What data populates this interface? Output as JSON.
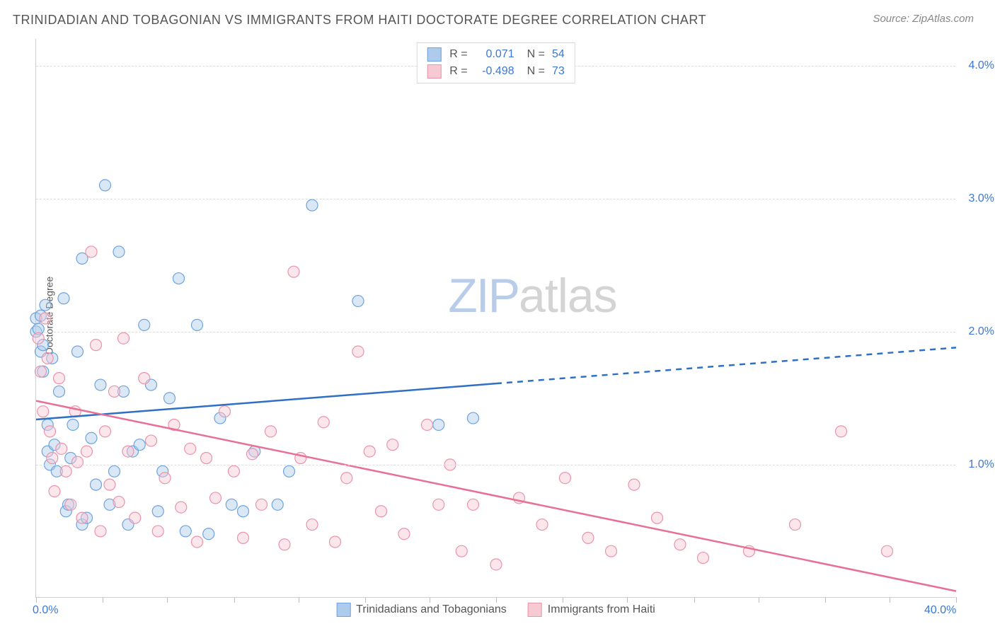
{
  "title": "TRINIDADIAN AND TOBAGONIAN VS IMMIGRANTS FROM HAITI DOCTORATE DEGREE CORRELATION CHART",
  "source": "Source: ZipAtlas.com",
  "ylabel": "Doctorate Degree",
  "watermark": {
    "part1": "ZIP",
    "part2": "atlas"
  },
  "chart": {
    "type": "scatter",
    "xlim": [
      0,
      40
    ],
    "ylim": [
      0,
      4.2
    ],
    "x_axis_labels": [
      {
        "v": 0,
        "label": "0.0%"
      },
      {
        "v": 40,
        "label": "40.0%"
      }
    ],
    "y_axis_labels": [
      {
        "v": 1.0,
        "label": "1.0%"
      },
      {
        "v": 2.0,
        "label": "2.0%"
      },
      {
        "v": 3.0,
        "label": "3.0%"
      },
      {
        "v": 4.0,
        "label": "4.0%"
      }
    ],
    "x_ticks": [
      0,
      2.9,
      5.7,
      8.6,
      11.4,
      14.3,
      17.1,
      20,
      22.9,
      25.7,
      28.6,
      31.4,
      34.3,
      37.1,
      40
    ],
    "gridlines_y": [
      1.0,
      2.0,
      3.0,
      4.0
    ],
    "background_color": "#ffffff",
    "grid_color": "#dcdcdc",
    "marker_radius": 8,
    "marker_opacity": 0.45,
    "series": [
      {
        "name": "Trinidadians and Tobagonians",
        "fill": "#aecbec",
        "stroke": "#6ea3df",
        "R": "0.071",
        "N": "54",
        "regression": {
          "color": "#2f6fc4",
          "width": 2.5,
          "x1": 0,
          "y1": 1.34,
          "x2": 40,
          "y2": 1.88,
          "solid_until_x": 20
        },
        "points": [
          [
            0.0,
            2.1
          ],
          [
            0.0,
            2.0
          ],
          [
            0.1,
            2.02
          ],
          [
            0.2,
            2.12
          ],
          [
            0.2,
            1.85
          ],
          [
            0.3,
            1.9
          ],
          [
            0.3,
            1.7
          ],
          [
            0.4,
            2.2
          ],
          [
            0.5,
            1.3
          ],
          [
            0.5,
            1.1
          ],
          [
            0.6,
            1.0
          ],
          [
            0.7,
            1.8
          ],
          [
            0.8,
            1.15
          ],
          [
            0.9,
            0.95
          ],
          [
            1.0,
            1.55
          ],
          [
            1.2,
            2.25
          ],
          [
            1.3,
            0.65
          ],
          [
            1.4,
            0.7
          ],
          [
            1.5,
            1.05
          ],
          [
            1.6,
            1.3
          ],
          [
            1.8,
            1.85
          ],
          [
            2.0,
            0.55
          ],
          [
            2.0,
            2.55
          ],
          [
            2.2,
            0.6
          ],
          [
            2.4,
            1.2
          ],
          [
            2.6,
            0.85
          ],
          [
            2.8,
            1.6
          ],
          [
            3.0,
            3.1
          ],
          [
            3.2,
            0.7
          ],
          [
            3.4,
            0.95
          ],
          [
            3.6,
            2.6
          ],
          [
            3.8,
            1.55
          ],
          [
            4.0,
            0.55
          ],
          [
            4.2,
            1.1
          ],
          [
            4.5,
            1.15
          ],
          [
            4.7,
            2.05
          ],
          [
            5.0,
            1.6
          ],
          [
            5.3,
            0.65
          ],
          [
            5.5,
            0.95
          ],
          [
            5.8,
            1.5
          ],
          [
            6.2,
            2.4
          ],
          [
            6.5,
            0.5
          ],
          [
            7.0,
            2.05
          ],
          [
            7.5,
            0.48
          ],
          [
            8.0,
            1.35
          ],
          [
            8.5,
            0.7
          ],
          [
            9.0,
            0.65
          ],
          [
            9.5,
            1.1
          ],
          [
            10.5,
            0.7
          ],
          [
            11.0,
            0.95
          ],
          [
            12.0,
            2.95
          ],
          [
            14.0,
            2.23
          ],
          [
            17.5,
            1.3
          ],
          [
            19.0,
            1.35
          ]
        ]
      },
      {
        "name": "Immigrants from Haiti",
        "fill": "#f6c9d3",
        "stroke": "#eb93ab",
        "R": "-0.498",
        "N": "73",
        "regression": {
          "color": "#e87095",
          "width": 2.5,
          "x1": 0,
          "y1": 1.48,
          "x2": 40,
          "y2": 0.05,
          "solid_until_x": 40
        },
        "points": [
          [
            0.1,
            1.95
          ],
          [
            0.2,
            1.7
          ],
          [
            0.3,
            1.4
          ],
          [
            0.4,
            2.1
          ],
          [
            0.5,
            1.8
          ],
          [
            0.6,
            1.25
          ],
          [
            0.7,
            1.05
          ],
          [
            0.8,
            0.8
          ],
          [
            1.0,
            1.65
          ],
          [
            1.1,
            1.12
          ],
          [
            1.3,
            0.95
          ],
          [
            1.5,
            0.7
          ],
          [
            1.7,
            1.4
          ],
          [
            1.8,
            1.02
          ],
          [
            2.0,
            0.6
          ],
          [
            2.2,
            1.1
          ],
          [
            2.4,
            2.6
          ],
          [
            2.6,
            1.9
          ],
          [
            2.8,
            0.5
          ],
          [
            3.0,
            1.25
          ],
          [
            3.2,
            0.85
          ],
          [
            3.4,
            1.55
          ],
          [
            3.6,
            0.72
          ],
          [
            3.8,
            1.95
          ],
          [
            4.0,
            1.1
          ],
          [
            4.3,
            0.6
          ],
          [
            4.7,
            1.65
          ],
          [
            5.0,
            1.18
          ],
          [
            5.3,
            0.5
          ],
          [
            5.6,
            0.9
          ],
          [
            6.0,
            1.3
          ],
          [
            6.3,
            0.68
          ],
          [
            6.7,
            1.12
          ],
          [
            7.0,
            0.42
          ],
          [
            7.4,
            1.05
          ],
          [
            7.8,
            0.75
          ],
          [
            8.2,
            1.4
          ],
          [
            8.6,
            0.95
          ],
          [
            9.0,
            0.45
          ],
          [
            9.4,
            1.08
          ],
          [
            9.8,
            0.7
          ],
          [
            10.2,
            1.25
          ],
          [
            10.8,
            0.4
          ],
          [
            11.2,
            2.45
          ],
          [
            11.5,
            1.05
          ],
          [
            12.0,
            0.55
          ],
          [
            12.5,
            1.32
          ],
          [
            13.0,
            0.42
          ],
          [
            13.5,
            0.9
          ],
          [
            14.0,
            1.85
          ],
          [
            14.5,
            1.1
          ],
          [
            15.0,
            0.65
          ],
          [
            15.5,
            1.15
          ],
          [
            16.0,
            0.48
          ],
          [
            17.0,
            1.3
          ],
          [
            17.5,
            0.7
          ],
          [
            18.0,
            1.0
          ],
          [
            18.5,
            0.35
          ],
          [
            19.0,
            0.7
          ],
          [
            20.0,
            0.25
          ],
          [
            21.0,
            0.75
          ],
          [
            22.0,
            0.55
          ],
          [
            23.0,
            0.9
          ],
          [
            24.0,
            0.45
          ],
          [
            25.0,
            0.35
          ],
          [
            26.0,
            0.85
          ],
          [
            27.0,
            0.6
          ],
          [
            28.0,
            0.4
          ],
          [
            29.0,
            0.3
          ],
          [
            31.0,
            0.35
          ],
          [
            33.0,
            0.55
          ],
          [
            35.0,
            1.25
          ],
          [
            37.0,
            0.35
          ]
        ]
      }
    ]
  }
}
